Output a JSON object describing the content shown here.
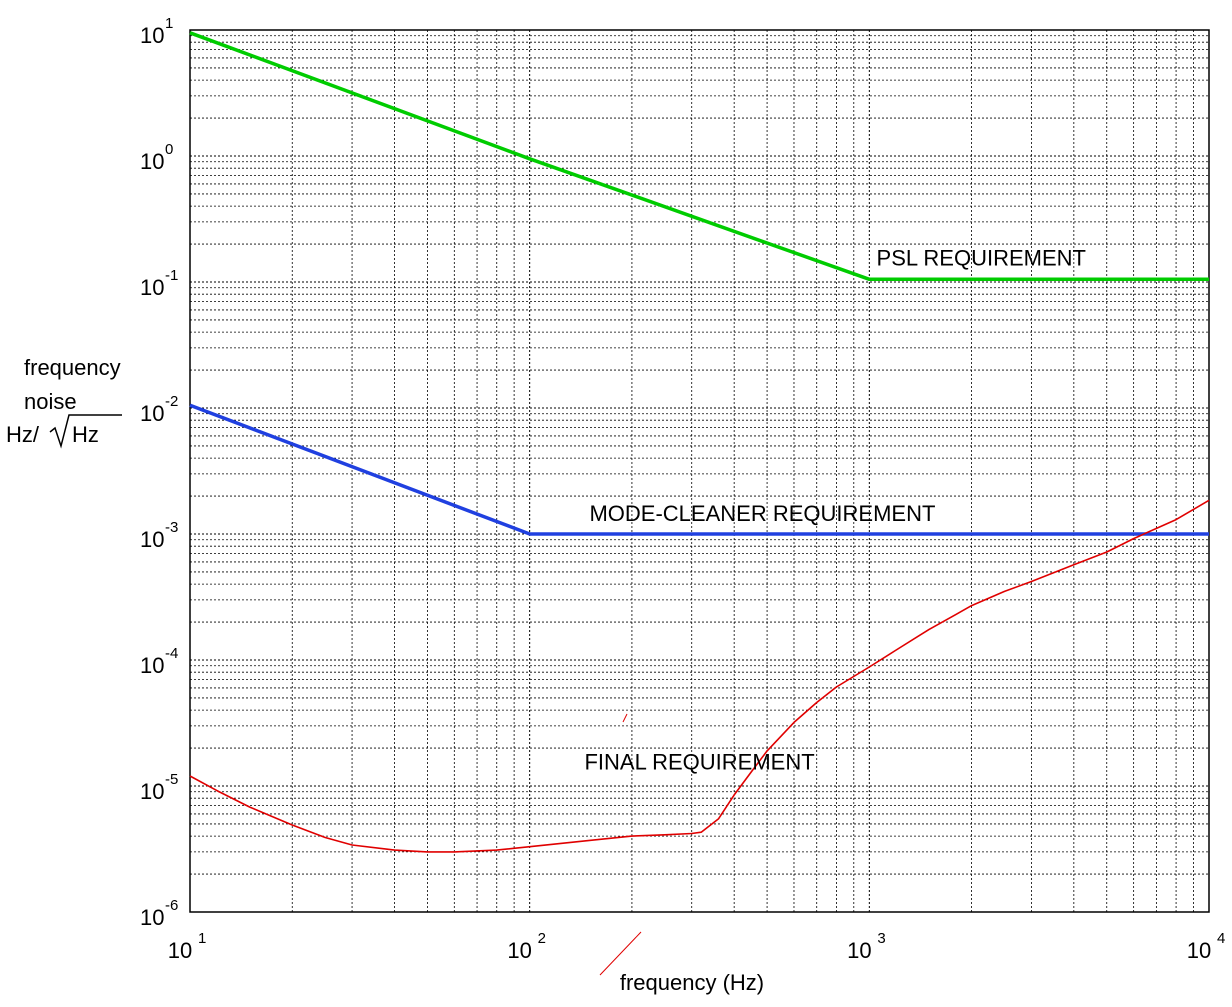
{
  "chart_data": {
    "type": "line",
    "title": "",
    "xlabel": "frequency (Hz)",
    "ylabel_lines": [
      "frequency",
      "noise",
      "Hz/"
    ],
    "ylabel_sqrt": "Hz",
    "x_scale": "log",
    "y_scale": "log",
    "xlim": [
      10,
      10000
    ],
    "ylim": [
      1e-06,
      10
    ],
    "grid": true,
    "legend": "none",
    "x_ticks": [
      {
        "value": 10,
        "base": "10",
        "exp": "1"
      },
      {
        "value": 100,
        "base": "10",
        "exp": "2"
      },
      {
        "value": 1000,
        "base": "10",
        "exp": "3"
      },
      {
        "value": 10000,
        "base": "10",
        "exp": "4"
      }
    ],
    "y_ticks": [
      {
        "value": 1e-06,
        "base": "10",
        "exp": "-6"
      },
      {
        "value": 1e-05,
        "base": "10",
        "exp": "-5"
      },
      {
        "value": 0.0001,
        "base": "10",
        "exp": "-4"
      },
      {
        "value": 0.001,
        "base": "10",
        "exp": "-3"
      },
      {
        "value": 0.01,
        "base": "10",
        "exp": "-2"
      },
      {
        "value": 0.1,
        "base": "10",
        "exp": "-1"
      },
      {
        "value": 1,
        "base": "10",
        "exp": "0"
      },
      {
        "value": 10,
        "base": "10",
        "exp": "1"
      }
    ],
    "series": [
      {
        "color": "#00cc00",
        "x": [
          10,
          100,
          1000,
          10000
        ],
        "y": [
          9.5,
          0.95,
          0.105,
          0.105
        ]
      },
      {
        "color": "#2040e0",
        "x": [
          10,
          100,
          10000
        ],
        "y": [
          0.0105,
          0.001,
          0.001
        ]
      },
      {
        "color": "#e00000",
        "x": [
          10,
          12,
          15,
          20,
          25,
          30,
          40,
          50,
          60,
          80,
          100,
          150,
          200,
          250,
          300,
          320,
          360,
          400,
          450,
          500,
          600,
          700,
          800,
          1000,
          1200,
          1500,
          1800,
          2000,
          2500,
          3000,
          4000,
          5000,
          6000,
          8000,
          10000
        ],
        "y": [
          1.2e-05,
          9.2e-06,
          6.8e-06,
          4.9e-06,
          3.9e-06,
          3.4e-06,
          3.1e-06,
          3e-06,
          3e-06,
          3.1e-06,
          3.3e-06,
          3.7e-06,
          4e-06,
          4.1e-06,
          4.2e-06,
          4.3e-06,
          5.5e-06,
          8.5e-06,
          1.3e-05,
          1.9e-05,
          3.2e-05,
          4.6e-05,
          6.1e-05,
          8.8e-05,
          0.00012,
          0.000175,
          0.00023,
          0.00027,
          0.00035,
          0.00042,
          0.00057,
          0.00072,
          0.00092,
          0.0013,
          0.00185
        ]
      }
    ],
    "annotations": [
      {
        "text": "PSL REQUIREMENT",
        "x": 1050,
        "y": 0.135
      },
      {
        "text": "MODE-CLEANER REQUIREMENT",
        "x": 150,
        "y": 0.00127
      },
      {
        "text": "FINAL REQUIREMENT",
        "x": 145,
        "y": 1.35e-05
      }
    ]
  }
}
